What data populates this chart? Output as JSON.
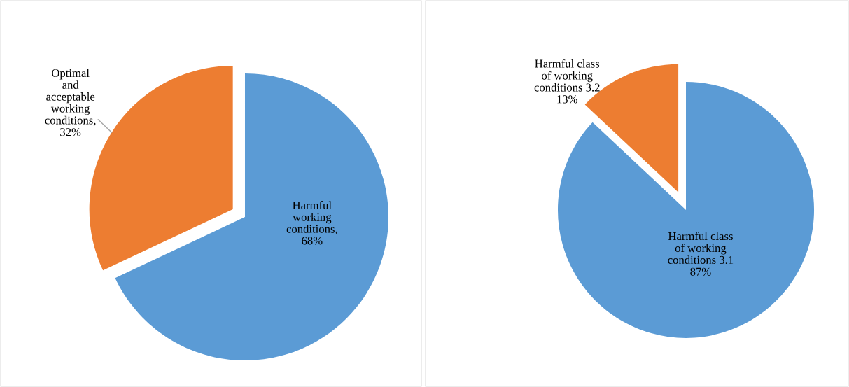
{
  "chart_data": [
    {
      "type": "pie",
      "categories": [
        "Harmful working conditions",
        "Optimal and acceptable working conditions"
      ],
      "values": [
        68,
        32
      ],
      "colors": [
        "#5b9bd5",
        "#ed7d31"
      ],
      "value_labels": [
        ", 68%",
        ", 32%"
      ]
    },
    {
      "type": "pie",
      "categories": [
        "Harmful class of working conditions 3.1",
        "Harmful class of working conditions 3.2"
      ],
      "values": [
        87,
        13
      ],
      "colors": [
        "#5b9bd5",
        "#ed7d31"
      ],
      "value_labels": [
        "87%",
        "13%"
      ]
    }
  ]
}
